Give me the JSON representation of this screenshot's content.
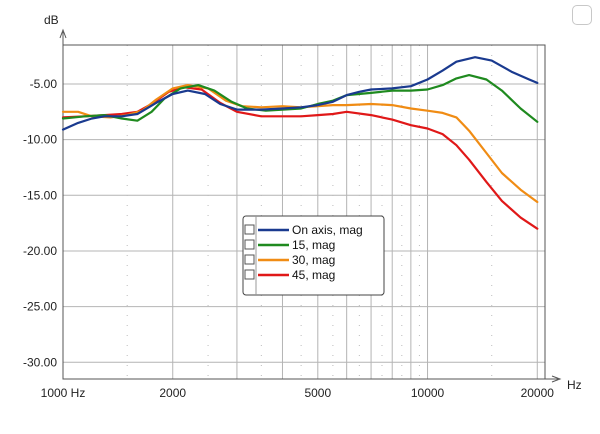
{
  "chart_data": {
    "type": "line",
    "xscale": "log",
    "xlabel": "Hz",
    "ylabel": "dB",
    "xlim": [
      1000,
      21000
    ],
    "ylim": [
      -31.5,
      -1.5
    ],
    "x_ticks": [
      {
        "value": 1000,
        "label": "1000 Hz"
      },
      {
        "value": 2000,
        "label": "2000"
      },
      {
        "value": 5000,
        "label": "5000"
      },
      {
        "value": 10000,
        "label": "10000"
      },
      {
        "value": 20000,
        "label": "20000"
      }
    ],
    "y_ticks": [
      {
        "value": -5,
        "label": "-5.00"
      },
      {
        "value": -10,
        "label": "-10.00"
      },
      {
        "value": -15,
        "label": "-15.00"
      },
      {
        "value": -20,
        "label": "-20.00"
      },
      {
        "value": -25,
        "label": "-25.00"
      },
      {
        "value": -30,
        "label": "-30.00"
      }
    ],
    "grid": true,
    "legend_position": "center",
    "series": [
      {
        "name": "On axis, mag",
        "color": "#1a3a8f",
        "points": [
          [
            1000,
            -9.1
          ],
          [
            1100,
            -8.5
          ],
          [
            1200,
            -8.1
          ],
          [
            1300,
            -7.9
          ],
          [
            1450,
            -7.9
          ],
          [
            1600,
            -7.7
          ],
          [
            1800,
            -6.7
          ],
          [
            2000,
            -5.9
          ],
          [
            2200,
            -5.6
          ],
          [
            2450,
            -5.9
          ],
          [
            2700,
            -6.8
          ],
          [
            3000,
            -7.3
          ],
          [
            3500,
            -7.3
          ],
          [
            4000,
            -7.2
          ],
          [
            4500,
            -7.1
          ],
          [
            5000,
            -6.9
          ],
          [
            5500,
            -6.6
          ],
          [
            6000,
            -6.0
          ],
          [
            6500,
            -5.7
          ],
          [
            7000,
            -5.5
          ],
          [
            8000,
            -5.4
          ],
          [
            9000,
            -5.2
          ],
          [
            10000,
            -4.6
          ],
          [
            11000,
            -3.8
          ],
          [
            12000,
            -3.0
          ],
          [
            13500,
            -2.6
          ],
          [
            15000,
            -2.9
          ],
          [
            17000,
            -3.9
          ],
          [
            19000,
            -4.6
          ],
          [
            20000,
            -4.9
          ]
        ]
      },
      {
        "name": "15, mag",
        "color": "#1f8a1f",
        "points": [
          [
            1000,
            -8.1
          ],
          [
            1150,
            -7.9
          ],
          [
            1300,
            -7.8
          ],
          [
            1450,
            -8.1
          ],
          [
            1600,
            -8.3
          ],
          [
            1750,
            -7.5
          ],
          [
            1900,
            -6.3
          ],
          [
            2100,
            -5.4
          ],
          [
            2350,
            -5.1
          ],
          [
            2600,
            -5.6
          ],
          [
            2900,
            -6.6
          ],
          [
            3200,
            -7.2
          ],
          [
            3600,
            -7.4
          ],
          [
            4000,
            -7.3
          ],
          [
            4500,
            -7.2
          ],
          [
            5000,
            -6.8
          ],
          [
            5500,
            -6.5
          ],
          [
            6000,
            -6.0
          ],
          [
            7000,
            -5.8
          ],
          [
            8000,
            -5.6
          ],
          [
            9000,
            -5.6
          ],
          [
            10000,
            -5.5
          ],
          [
            11000,
            -5.1
          ],
          [
            12000,
            -4.5
          ],
          [
            13000,
            -4.2
          ],
          [
            14500,
            -4.6
          ],
          [
            16000,
            -5.6
          ],
          [
            18000,
            -7.2
          ],
          [
            20000,
            -8.4
          ]
        ]
      },
      {
        "name": "30, mag",
        "color": "#f08c14",
        "points": [
          [
            1000,
            -7.5
          ],
          [
            1100,
            -7.5
          ],
          [
            1200,
            -7.9
          ],
          [
            1350,
            -8.0
          ],
          [
            1500,
            -7.8
          ],
          [
            1650,
            -7.4
          ],
          [
            1800,
            -6.4
          ],
          [
            2000,
            -5.4
          ],
          [
            2200,
            -5.1
          ],
          [
            2500,
            -5.4
          ],
          [
            2800,
            -6.5
          ],
          [
            3100,
            -7.0
          ],
          [
            3500,
            -7.1
          ],
          [
            4000,
            -7.0
          ],
          [
            4500,
            -7.1
          ],
          [
            5000,
            -7.0
          ],
          [
            5500,
            -6.9
          ],
          [
            6000,
            -6.9
          ],
          [
            7000,
            -6.8
          ],
          [
            8000,
            -6.9
          ],
          [
            9000,
            -7.2
          ],
          [
            10000,
            -7.4
          ],
          [
            11000,
            -7.6
          ],
          [
            12000,
            -8.0
          ],
          [
            13000,
            -9.2
          ],
          [
            14500,
            -11.2
          ],
          [
            16000,
            -13.0
          ],
          [
            18000,
            -14.5
          ],
          [
            20000,
            -15.6
          ]
        ]
      },
      {
        "name": "45, mag",
        "color": "#e01818",
        "points": [
          [
            1000,
            -8.0
          ],
          [
            1150,
            -7.9
          ],
          [
            1300,
            -7.8
          ],
          [
            1450,
            -7.7
          ],
          [
            1600,
            -7.5
          ],
          [
            1750,
            -6.8
          ],
          [
            1950,
            -5.7
          ],
          [
            2150,
            -5.3
          ],
          [
            2400,
            -5.5
          ],
          [
            2700,
            -6.7
          ],
          [
            3000,
            -7.5
          ],
          [
            3500,
            -7.9
          ],
          [
            4000,
            -7.9
          ],
          [
            4500,
            -7.9
          ],
          [
            5000,
            -7.8
          ],
          [
            5500,
            -7.7
          ],
          [
            6000,
            -7.5
          ],
          [
            7000,
            -7.8
          ],
          [
            8000,
            -8.2
          ],
          [
            9000,
            -8.7
          ],
          [
            10000,
            -9.0
          ],
          [
            11000,
            -9.5
          ],
          [
            12000,
            -10.5
          ],
          [
            13000,
            -11.8
          ],
          [
            14500,
            -13.8
          ],
          [
            16000,
            -15.5
          ],
          [
            18000,
            -17.0
          ],
          [
            20000,
            -18.0
          ]
        ]
      }
    ]
  }
}
